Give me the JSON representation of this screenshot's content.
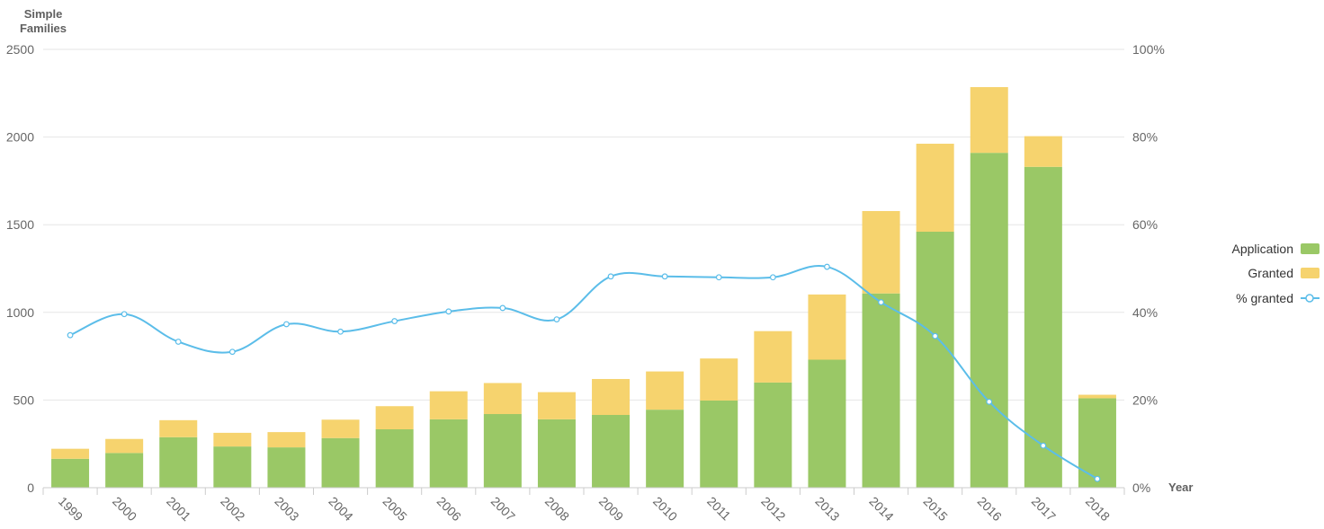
{
  "colors": {
    "application": "#9ac866",
    "granted": "#f6d36e",
    "percent_line": "#5bbde9",
    "grid": "#e6e6e6",
    "axis": "#cccccc"
  },
  "chart_data": {
    "type": "bar",
    "stacked": true,
    "y_title": [
      "Simple",
      "Families"
    ],
    "x_title": "Year",
    "categories": [
      "1999",
      "2000",
      "2001",
      "2002",
      "2003",
      "2004",
      "2005",
      "2006",
      "2007",
      "2008",
      "2009",
      "2010",
      "2011",
      "2012",
      "2013",
      "2014",
      "2015",
      "2016",
      "2017",
      "2018"
    ],
    "series": [
      {
        "name": "Application",
        "type": "bar",
        "axis": "left",
        "color": "#9ac866",
        "values": [
          165,
          198,
          288,
          235,
          230,
          283,
          333,
          390,
          420,
          390,
          415,
          445,
          497,
          600,
          730,
          1108,
          1460,
          1910,
          1830,
          510
        ]
      },
      {
        "name": "Granted",
        "type": "bar",
        "axis": "left",
        "color": "#f6d36e",
        "values": [
          57,
          80,
          97,
          78,
          87,
          105,
          132,
          160,
          177,
          155,
          205,
          218,
          240,
          293,
          372,
          470,
          502,
          375,
          175,
          20
        ]
      },
      {
        "name": "% granted",
        "type": "line",
        "axis": "right",
        "color": "#5bbde9",
        "values": [
          34.8,
          39.6,
          33.3,
          31.0,
          37.3,
          35.6,
          38.0,
          40.2,
          41.0,
          38.4,
          48.2,
          48.2,
          48.0,
          48.0,
          50.4,
          42.3,
          34.6,
          19.6,
          9.6,
          2.0
        ]
      }
    ],
    "y_left": {
      "min": 0,
      "max": 2500,
      "ticks": [
        "0",
        "500",
        "1000",
        "1500",
        "2000",
        "2500"
      ]
    },
    "y_right": {
      "min": 0,
      "max": 100,
      "ticks": [
        "0%",
        "20%",
        "40%",
        "60%",
        "80%",
        "100%"
      ]
    },
    "grid": true,
    "legend_position": "right",
    "legend": [
      "Application",
      "Granted",
      "% granted"
    ]
  }
}
